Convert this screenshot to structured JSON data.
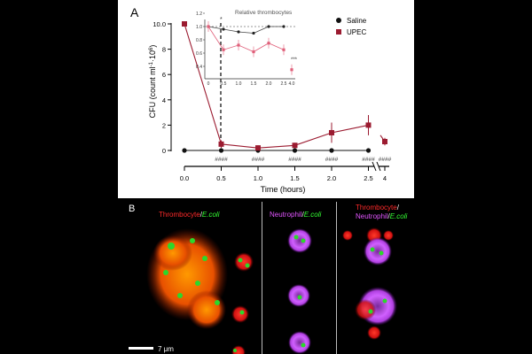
{
  "panel_a": {
    "label": "A",
    "ylabel_main": "CFU (count ml",
    "ylabel_sup1": "-1",
    "ylabel_mid": "·10",
    "ylabel_sup2": "6",
    "ylabel_end": ")",
    "xlabel": "Time (hours)",
    "sig_marker": "####",
    "legend": [
      {
        "label": "Saline",
        "color": "#111111",
        "marker": "circle"
      },
      {
        "label": "UPEC",
        "color": "#9b1b30",
        "marker": "square"
      }
    ],
    "inset_title": "Relative thrombocytes",
    "inset_star": "*",
    "inset_triple_star": "***"
  },
  "chart_data": [
    {
      "type": "line",
      "title": "",
      "xlabel": "Time (hours)",
      "ylabel": "CFU (count ml-1·10^6)",
      "x_ticks": [
        "0.0",
        "0.5",
        "1.0",
        "1.5",
        "2.0",
        "2.5",
        "4"
      ],
      "y_ticks": [
        "0",
        "2",
        "4",
        "6",
        "8",
        "10.0"
      ],
      "ylim": [
        0,
        10
      ],
      "x_axis_break": [
        2.5,
        4
      ],
      "series": [
        {
          "name": "Saline",
          "x": [
            0.0,
            0.5,
            1.0,
            1.5,
            2.0,
            2.5
          ],
          "y": [
            0,
            0,
            0,
            0,
            0,
            0
          ]
        },
        {
          "name": "UPEC",
          "x": [
            0.0,
            0.5,
            1.0,
            1.5,
            2.0,
            2.5,
            4
          ],
          "y": [
            10.0,
            0.5,
            0.2,
            0.4,
            1.4,
            2.0,
            0.7
          ],
          "err": [
            0.1,
            0.3,
            0.2,
            0.2,
            0.8,
            0.8,
            0.3
          ]
        }
      ],
      "significance": {
        "label": "####",
        "x": [
          0.5,
          1.0,
          1.5,
          2.0,
          2.5,
          4
        ]
      },
      "legend_position": "top-right"
    },
    {
      "type": "line",
      "title": "Relative thrombocytes",
      "x_ticks": [
        "0",
        "0.5",
        "1.0",
        "1.5",
        "2.0",
        "2.5",
        "4.0"
      ],
      "y_ticks": [
        "0.4",
        "0.6",
        "0.8",
        "1.0",
        "1.2"
      ],
      "ylim": [
        0.35,
        1.2
      ],
      "reference_line": 1.0,
      "series": [
        {
          "name": "Saline",
          "x": [
            0,
            0.5,
            1.0,
            1.5,
            2.0,
            2.5
          ],
          "y": [
            1.0,
            0.96,
            0.92,
            0.9,
            1.0,
            1.0
          ]
        },
        {
          "name": "UPEC",
          "x": [
            0,
            0.5,
            1.0,
            1.5,
            2.0,
            2.5,
            4.0
          ],
          "y": [
            1.0,
            0.65,
            0.72,
            0.62,
            0.75,
            0.65,
            0.35
          ]
        }
      ],
      "significance": [
        {
          "label": "*",
          "x": 0.5
        },
        {
          "label": "***",
          "x": 4.0
        }
      ]
    }
  ],
  "panel_b": {
    "label": "B",
    "caption1_a": "Thrombocyte",
    "caption1_sep": "/",
    "caption1_b": "E.coli",
    "caption2_a": "Neutrophil",
    "caption2_sep": "/",
    "caption2_b": "E.coli",
    "caption3_a": "Thrombocyte",
    "caption3_sep1": "/",
    "caption3_b": "Neutrophil",
    "caption3_sep2": "/",
    "caption3_c": "E.coli",
    "scalebar_label": "7 μm",
    "colors": {
      "thrombocyte": "#ff2a2a",
      "ecoli": "#33ff33",
      "neutrophil": "#e255ff"
    }
  }
}
